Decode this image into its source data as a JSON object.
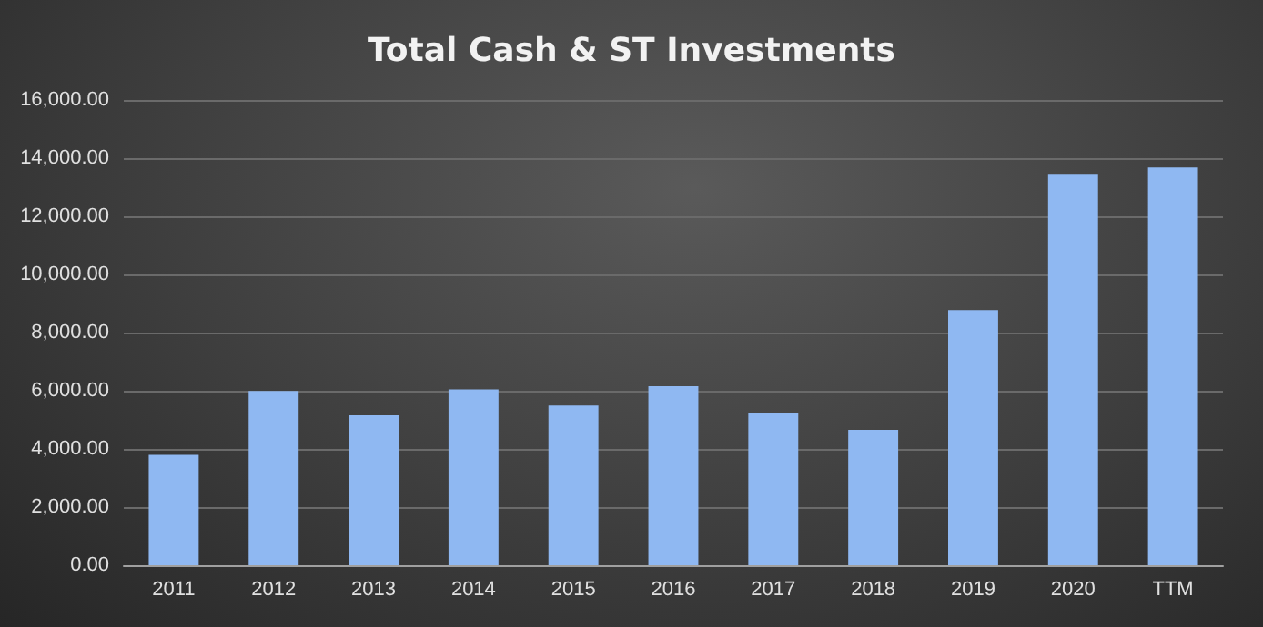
{
  "chart_data": {
    "type": "bar",
    "title": "Total Cash & ST Investments",
    "categories": [
      "2011",
      "2012",
      "2013",
      "2014",
      "2015",
      "2016",
      "2017",
      "2018",
      "2019",
      "2020",
      "TTM"
    ],
    "values": [
      3800,
      5990,
      5160,
      6050,
      5490,
      6160,
      5220,
      4660,
      8770,
      13430,
      13680
    ],
    "color": "#8fb8f2",
    "ylim": [
      0,
      16000
    ],
    "yticks": [
      {
        "value": 0,
        "label": "0.00"
      },
      {
        "value": 2000,
        "label": "2,000.00"
      },
      {
        "value": 4000,
        "label": "4,000.00"
      },
      {
        "value": 6000,
        "label": "6,000.00"
      },
      {
        "value": 8000,
        "label": "8,000.00"
      },
      {
        "value": 10000,
        "label": "10,000.00"
      },
      {
        "value": 12000,
        "label": "12,000.00"
      },
      {
        "value": 14000,
        "label": "14,000.00"
      },
      {
        "value": 16000,
        "label": "16,000.00"
      }
    ],
    "grid": "y"
  }
}
